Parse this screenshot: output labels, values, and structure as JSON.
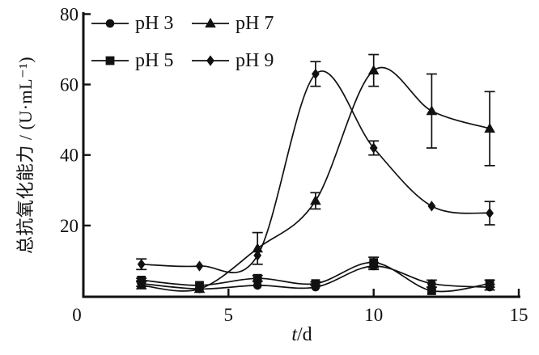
{
  "figure": {
    "background": "#ffffff",
    "ink": "#111111"
  },
  "chart_data": {
    "type": "line",
    "title": "",
    "xlabel": "t/d",
    "xlabel_italic_part": "t",
    "xlabel_rest": "/d",
    "ylabel": "总抗氧化能力 / (U·mL⁻¹)",
    "x": [
      2,
      4,
      6,
      8,
      10,
      12,
      14
    ],
    "xlim": [
      0,
      15
    ],
    "ylim": [
      0,
      80
    ],
    "xticks": [
      0,
      5,
      10,
      15
    ],
    "yticks": [
      20,
      40,
      60,
      80
    ],
    "grid": false,
    "legend_position": "top-left-inside",
    "legend_order": [
      0,
      2,
      1,
      3
    ],
    "series": [
      {
        "name": "pH 3",
        "marker": "circle",
        "values": [
          3.5,
          2,
          3,
          2.5,
          8.5,
          3.5,
          2.5
        ],
        "errors": [
          0.8,
          0,
          0,
          0,
          1,
          1,
          0.8
        ]
      },
      {
        "name": "pH 5",
        "marker": "square",
        "values": [
          4.5,
          3,
          5,
          3.5,
          9.5,
          1.5,
          3.5
        ],
        "errors": [
          0.5,
          0,
          0.8,
          0.5,
          1.5,
          0,
          1
        ]
      },
      {
        "name": "pH 7",
        "marker": "triangle",
        "values": [
          3,
          2,
          13.5,
          27,
          64,
          52.5,
          47.5
        ],
        "errors": [
          0,
          0,
          4.5,
          2.3,
          4.5,
          10.5,
          10.5
        ]
      },
      {
        "name": "pH 9",
        "marker": "diamond",
        "values": [
          9,
          8.5,
          11.5,
          63,
          42,
          25.5,
          23.5
        ],
        "errors": [
          1.5,
          0,
          0,
          3.5,
          2,
          0,
          3.3
        ]
      }
    ]
  }
}
